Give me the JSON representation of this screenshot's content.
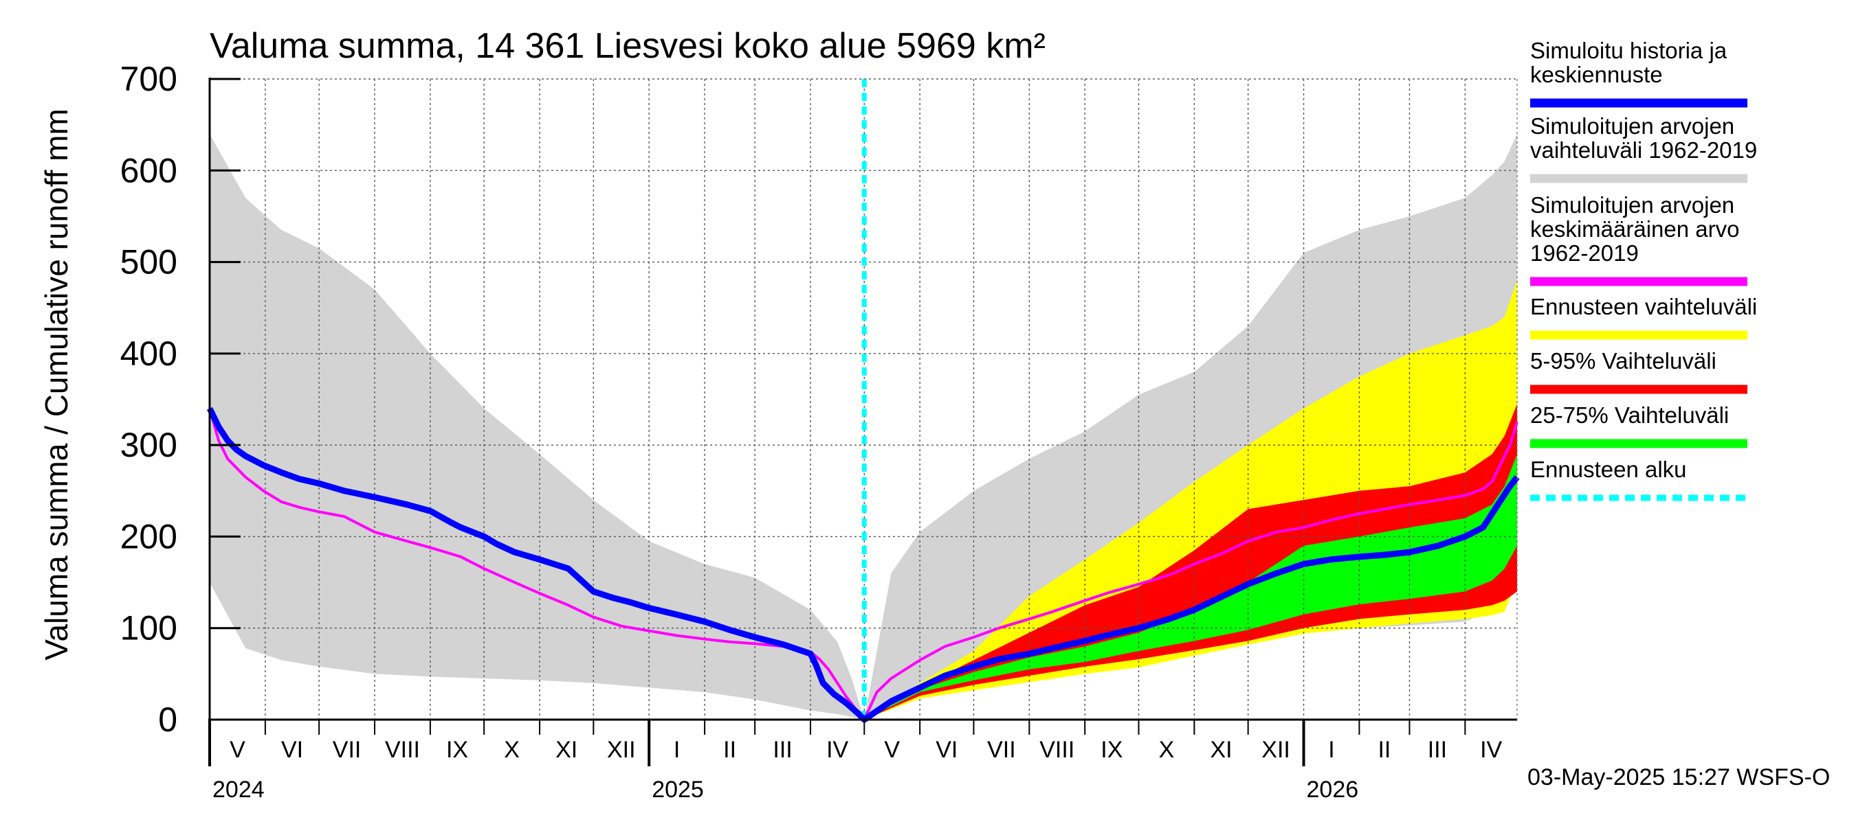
{
  "chart_data": {
    "type": "area",
    "title": "Valuma summa, 14 361 Liesvesi koko alue 5969 km²",
    "ylabel": "Valuma summa / Cumulative runoff    mm",
    "ylim": [
      0,
      700
    ],
    "yticks": [
      0,
      100,
      200,
      300,
      400,
      500,
      600,
      700
    ],
    "x_range_days": [
      0,
      729
    ],
    "forecast_start_day": 365,
    "months": [
      {
        "label": "V",
        "start": 0,
        "end": 31
      },
      {
        "label": "VI",
        "start": 31,
        "end": 61
      },
      {
        "label": "VII",
        "start": 61,
        "end": 92
      },
      {
        "label": "VIII",
        "start": 92,
        "end": 123
      },
      {
        "label": "IX",
        "start": 123,
        "end": 153
      },
      {
        "label": "X",
        "start": 153,
        "end": 184
      },
      {
        "label": "XI",
        "start": 184,
        "end": 214
      },
      {
        "label": "XII",
        "start": 214,
        "end": 245
      },
      {
        "label": "I",
        "start": 245,
        "end": 276
      },
      {
        "label": "II",
        "start": 276,
        "end": 304
      },
      {
        "label": "III",
        "start": 304,
        "end": 335
      },
      {
        "label": "IV",
        "start": 335,
        "end": 365
      },
      {
        "label": "V",
        "start": 365,
        "end": 396
      },
      {
        "label": "VI",
        "start": 396,
        "end": 426
      },
      {
        "label": "VII",
        "start": 426,
        "end": 457
      },
      {
        "label": "VIII",
        "start": 457,
        "end": 488
      },
      {
        "label": "IX",
        "start": 488,
        "end": 518
      },
      {
        "label": "X",
        "start": 518,
        "end": 549
      },
      {
        "label": "XI",
        "start": 549,
        "end": 579
      },
      {
        "label": "XII",
        "start": 579,
        "end": 610
      },
      {
        "label": "I",
        "start": 610,
        "end": 641
      },
      {
        "label": "II",
        "start": 641,
        "end": 669
      },
      {
        "label": "III",
        "start": 669,
        "end": 700
      },
      {
        "label": "IV",
        "start": 700,
        "end": 729
      }
    ],
    "years": [
      {
        "label": "2024",
        "day": 0
      },
      {
        "label": "2025",
        "day": 245
      },
      {
        "label": "2026",
        "day": 610
      }
    ],
    "series": [
      {
        "name": "Simuloitujen arvojen vaihteluväli 1962-2019",
        "kind": "band",
        "color": "#d3d3d3",
        "x": [
          0,
          20,
          40,
          61,
          92,
          123,
          153,
          184,
          214,
          245,
          276,
          304,
          335,
          350,
          358,
          365,
          380,
          396,
          426,
          457,
          488,
          518,
          549,
          579,
          610,
          641,
          669,
          700,
          715,
          722,
          729
        ],
        "upper": [
          640,
          570,
          535,
          515,
          470,
          400,
          340,
          290,
          240,
          195,
          170,
          155,
          120,
          85,
          45,
          0,
          160,
          205,
          250,
          285,
          315,
          355,
          380,
          430,
          510,
          535,
          550,
          570,
          595,
          610,
          640
        ],
        "lower": [
          150,
          78,
          65,
          58,
          50,
          47,
          45,
          43,
          40,
          35,
          30,
          22,
          10,
          6,
          3,
          0,
          18,
          28,
          40,
          52,
          60,
          70,
          83,
          90,
          96,
          100,
          103,
          107,
          120,
          140,
          160
        ]
      },
      {
        "name": "Ennusteen vaihteluväli",
        "kind": "band",
        "color": "#ffff00",
        "x": [
          365,
          396,
          426,
          457,
          488,
          518,
          549,
          579,
          610,
          641,
          669,
          700,
          715,
          722,
          729
        ],
        "upper": [
          0,
          40,
          75,
          135,
          175,
          215,
          260,
          300,
          340,
          375,
          400,
          420,
          430,
          440,
          480
        ],
        "lower": [
          0,
          23,
          32,
          41,
          50,
          57,
          70,
          82,
          94,
          100,
          105,
          110,
          114,
          118,
          152
        ]
      },
      {
        "name": "5-95% Vaihteluväli",
        "kind": "band",
        "color": "#ff0000",
        "x": [
          365,
          396,
          426,
          457,
          488,
          518,
          549,
          579,
          610,
          641,
          669,
          700,
          715,
          722,
          729
        ],
        "upper": [
          0,
          36,
          65,
          95,
          125,
          145,
          185,
          230,
          240,
          250,
          255,
          270,
          290,
          310,
          345
        ],
        "lower": [
          0,
          26,
          38,
          48,
          58,
          66,
          76,
          86,
          100,
          110,
          115,
          120,
          125,
          130,
          140
        ]
      },
      {
        "name": "25-75% Vaihteluväli",
        "kind": "band",
        "color": "#00ff00",
        "x": [
          365,
          396,
          426,
          457,
          488,
          518,
          549,
          579,
          610,
          641,
          669,
          700,
          715,
          722,
          729
        ],
        "upper": [
          0,
          33,
          52,
          68,
          80,
          95,
          120,
          150,
          190,
          200,
          210,
          220,
          235,
          255,
          290
        ],
        "lower": [
          0,
          30,
          43,
          55,
          63,
          75,
          86,
          98,
          115,
          126,
          132,
          140,
          152,
          165,
          190
        ]
      },
      {
        "name": "Simuloitujen arvojen keskimääräinen arvo 1962-2019",
        "kind": "line",
        "color": "#ff00ff",
        "x": [
          0,
          5,
          10,
          20,
          30,
          40,
          50,
          61,
          75,
          92,
          110,
          123,
          140,
          153,
          170,
          184,
          200,
          214,
          230,
          245,
          260,
          276,
          290,
          304,
          320,
          335,
          340,
          345,
          350,
          355,
          360,
          365,
          372,
          380,
          396,
          410,
          426,
          440,
          457,
          470,
          488,
          500,
          518,
          535,
          549,
          565,
          579,
          595,
          610,
          625,
          641,
          655,
          669,
          685,
          700,
          710,
          715,
          720,
          725,
          729
        ],
        "y": [
          340,
          305,
          285,
          265,
          250,
          238,
          232,
          227,
          222,
          205,
          195,
          188,
          178,
          165,
          150,
          138,
          125,
          112,
          102,
          97,
          92,
          88,
          85,
          83,
          80,
          74,
          66,
          55,
          40,
          25,
          12,
          0,
          30,
          45,
          65,
          80,
          90,
          100,
          110,
          118,
          130,
          138,
          148,
          158,
          170,
          182,
          195,
          205,
          210,
          218,
          225,
          230,
          235,
          240,
          245,
          252,
          260,
          280,
          300,
          325
        ]
      },
      {
        "name": "Simuloitu historia ja keskiennuste",
        "kind": "line",
        "color": "#0000ff",
        "x": [
          0,
          5,
          10,
          15,
          20,
          30,
          40,
          50,
          61,
          75,
          92,
          110,
          123,
          135,
          140,
          153,
          160,
          170,
          184,
          200,
          214,
          225,
          235,
          245,
          260,
          276,
          290,
          304,
          320,
          335,
          338,
          342,
          348,
          355,
          362,
          365,
          380,
          396,
          410,
          426,
          440,
          457,
          470,
          488,
          500,
          518,
          535,
          549,
          565,
          579,
          595,
          610,
          625,
          641,
          655,
          669,
          685,
          700,
          710,
          715,
          720,
          725,
          729
        ],
        "y": [
          340,
          320,
          305,
          295,
          288,
          278,
          270,
          263,
          258,
          250,
          243,
          235,
          228,
          215,
          210,
          200,
          192,
          183,
          175,
          165,
          140,
          133,
          128,
          122,
          115,
          107,
          98,
          90,
          82,
          72,
          60,
          40,
          28,
          18,
          6,
          0,
          20,
          35,
          48,
          58,
          66,
          72,
          78,
          86,
          92,
          100,
          110,
          120,
          135,
          148,
          160,
          170,
          175,
          178,
          180,
          183,
          190,
          200,
          210,
          225,
          240,
          255,
          265
        ]
      }
    ]
  },
  "legend": [
    {
      "lines": [
        "Simuloitu historia ja",
        "keskiennuste"
      ],
      "color": "#0000ff",
      "style": "solid"
    },
    {
      "lines": [
        "Simuloitujen arvojen",
        "vaihteluväli 1962-2019"
      ],
      "color": "#d3d3d3",
      "style": "solid"
    },
    {
      "lines": [
        "Simuloitujen arvojen",
        "keskimääräinen arvo",
        "   1962-2019"
      ],
      "color": "#ff00ff",
      "style": "solid"
    },
    {
      "lines": [
        "Ennusteen vaihteluväli"
      ],
      "color": "#ffff00",
      "style": "solid"
    },
    {
      "lines": [
        "5-95% Vaihteluväli"
      ],
      "color": "#ff0000",
      "style": "solid"
    },
    {
      "lines": [
        "25-75% Vaihteluväli"
      ],
      "color": "#00ff00",
      "style": "solid"
    },
    {
      "lines": [
        "Ennusteen alku"
      ],
      "color": "#00ffff",
      "style": "dashed"
    }
  ],
  "footer": "03-May-2025 15:27 WSFS-O"
}
